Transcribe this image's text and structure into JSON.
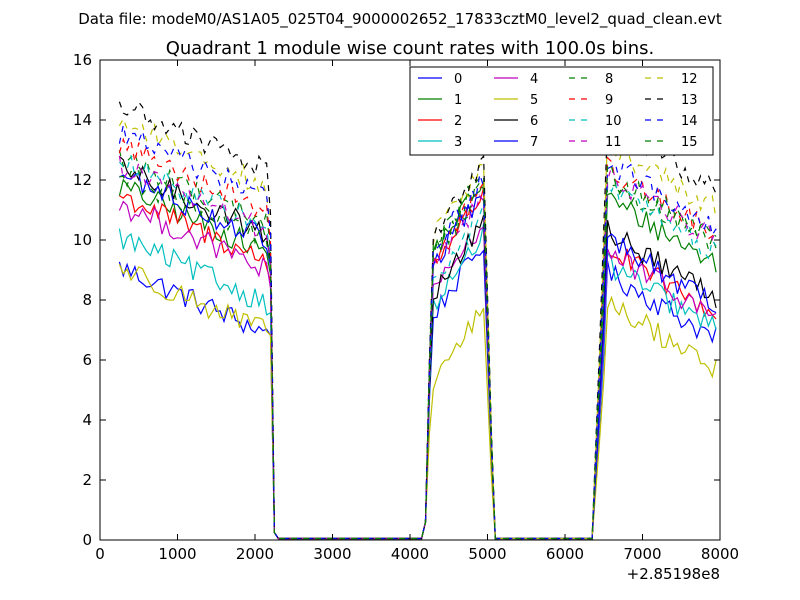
{
  "suptitle": "Data file: modeM0/AS1A05_025T04_9000002652_17833cztM0_level2_quad_clean.evt",
  "chart_data": {
    "type": "line",
    "title": "Quadrant 1 module wise count rates with 100.0s bins.",
    "xlabel": "",
    "ylabel": "",
    "x_offset_label": "+2.85198e8",
    "xlim": [
      0,
      8000
    ],
    "ylim": [
      0,
      16
    ],
    "xticks": [
      0,
      1000,
      2000,
      3000,
      4000,
      5000,
      6000,
      7000,
      8000
    ],
    "yticks": [
      0,
      2,
      4,
      6,
      8,
      10,
      12,
      14,
      16
    ],
    "xtick_labels": [
      "0",
      "1000",
      "2000",
      "3000",
      "4000",
      "5000",
      "6000",
      "7000",
      "8000"
    ],
    "ytick_labels": [
      "0",
      "2",
      "4",
      "6",
      "8",
      "10",
      "12",
      "14",
      "16"
    ],
    "grid": false,
    "legend_position": "top-right",
    "legend_columns": 4,
    "segments": [
      {
        "x_start": 250,
        "x_end": 2150
      },
      {
        "x_start": 4300,
        "x_end": 4950
      },
      {
        "x_start": 6550,
        "x_end": 7950
      }
    ],
    "series": [
      {
        "name": "0",
        "color": "#0000ff",
        "dash": "solid",
        "levels": [
          9.1,
          9.3,
          7.3
        ]
      },
      {
        "name": "1",
        "color": "#008000",
        "dash": "solid",
        "levels": [
          11.8,
          11.4,
          9.8
        ]
      },
      {
        "name": "2",
        "color": "#ff0000",
        "dash": "solid",
        "levels": [
          11.5,
          11.0,
          8.1
        ]
      },
      {
        "name": "3",
        "color": "#00bfbf",
        "dash": "solid",
        "levels": [
          10.1,
          9.6,
          7.6
        ]
      },
      {
        "name": "4",
        "color": "#bf00bf",
        "dash": "solid",
        "levels": [
          11.2,
          10.0,
          8.0
        ]
      },
      {
        "name": "5",
        "color": "#bfbf00",
        "dash": "solid",
        "levels": [
          9.1,
          7.1,
          6.3
        ]
      },
      {
        "name": "6",
        "color": "#000000",
        "dash": "solid",
        "levels": [
          12.4,
          10.0,
          8.7
        ]
      },
      {
        "name": "7",
        "color": "#0000ff",
        "dash": "solid",
        "levels": [
          12.2,
          11.0,
          8.4
        ]
      },
      {
        "name": "8",
        "color": "#008000",
        "dash": "dashed",
        "levels": [
          12.8,
          11.6,
          10.4
        ]
      },
      {
        "name": "9",
        "color": "#ff0000",
        "dash": "dashed",
        "levels": [
          13.2,
          11.2,
          10.8
        ]
      },
      {
        "name": "10",
        "color": "#00bfbf",
        "dash": "dashed",
        "levels": [
          12.6,
          10.3,
          10.2
        ]
      },
      {
        "name": "11",
        "color": "#bf00bf",
        "dash": "dashed",
        "levels": [
          12.5,
          10.9,
          10.6
        ]
      },
      {
        "name": "12",
        "color": "#bfbf00",
        "dash": "dashed",
        "levels": [
          14.0,
          11.9,
          11.6
        ]
      },
      {
        "name": "13",
        "color": "#000000",
        "dash": "dashed",
        "levels": [
          14.5,
          12.0,
          12.3
        ]
      },
      {
        "name": "14",
        "color": "#0000ff",
        "dash": "dashed",
        "levels": [
          13.6,
          11.5,
          11.0
        ]
      },
      {
        "name": "15",
        "color": "#008000",
        "dash": "dashed",
        "levels": [
          12.2,
          11.2,
          10.6
        ]
      }
    ]
  }
}
